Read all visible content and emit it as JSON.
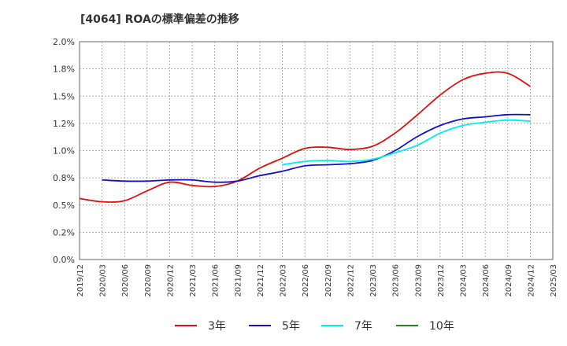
{
  "chart_data": {
    "type": "line",
    "title": "[4064]  ROAの標準偏差の推移",
    "xlabel": "",
    "ylabel": "",
    "x_ticks": [
      "2019/12",
      "2020/03",
      "2020/06",
      "2020/09",
      "2020/12",
      "2021/03",
      "2021/06",
      "2021/09",
      "2021/12",
      "2022/03",
      "2022/06",
      "2022/09",
      "2022/12",
      "2023/03",
      "2023/06",
      "2023/09",
      "2023/12",
      "2024/03",
      "2024/06",
      "2024/09",
      "2024/12",
      "2025/03"
    ],
    "y_ticks": [
      "0.0%",
      "0.2%",
      "0.5%",
      "0.8%",
      "1.0%",
      "1.2%",
      "1.5%",
      "1.8%",
      "2.0%"
    ],
    "ylim": [
      0,
      2.0
    ],
    "grid": true,
    "legend_position": "bottom",
    "series": [
      {
        "name": "3年",
        "color": "#dd1111",
        "x": [
          "2019/12",
          "2020/03",
          "2020/06",
          "2020/09",
          "2020/12",
          "2021/03",
          "2021/06",
          "2021/09",
          "2021/12",
          "2022/03",
          "2022/06",
          "2022/09",
          "2022/12",
          "2023/03",
          "2023/06",
          "2023/09",
          "2023/12",
          "2024/03",
          "2024/06",
          "2024/09",
          "2024/12"
        ],
        "values": [
          0.56,
          0.53,
          0.54,
          0.63,
          0.71,
          0.68,
          0.67,
          0.72,
          0.84,
          0.93,
          1.02,
          1.03,
          1.01,
          1.04,
          1.16,
          1.33,
          1.51,
          1.65,
          1.71,
          1.71,
          1.59
        ]
      },
      {
        "name": "5年",
        "color": "#1111cc",
        "x": [
          "2020/03",
          "2020/06",
          "2020/09",
          "2020/12",
          "2021/03",
          "2021/06",
          "2021/09",
          "2021/12",
          "2022/03",
          "2022/06",
          "2022/09",
          "2022/12",
          "2023/03",
          "2023/06",
          "2023/09",
          "2023/12",
          "2024/03",
          "2024/06",
          "2024/09",
          "2024/12"
        ],
        "values": [
          0.73,
          0.72,
          0.72,
          0.73,
          0.73,
          0.71,
          0.72,
          0.77,
          0.81,
          0.86,
          0.87,
          0.88,
          0.91,
          1.0,
          1.13,
          1.23,
          1.29,
          1.31,
          1.33,
          1.33
        ]
      },
      {
        "name": "7年",
        "color": "#00eeee",
        "x": [
          "2022/03",
          "2022/06",
          "2022/09",
          "2022/12",
          "2023/03",
          "2023/06",
          "2023/09",
          "2023/12",
          "2024/03",
          "2024/06",
          "2024/09",
          "2024/12"
        ],
        "values": [
          0.87,
          0.9,
          0.91,
          0.9,
          0.92,
          0.98,
          1.05,
          1.16,
          1.23,
          1.26,
          1.28,
          1.27
        ]
      },
      {
        "name": "10年",
        "color": "#228822",
        "x": [],
        "values": []
      }
    ]
  }
}
